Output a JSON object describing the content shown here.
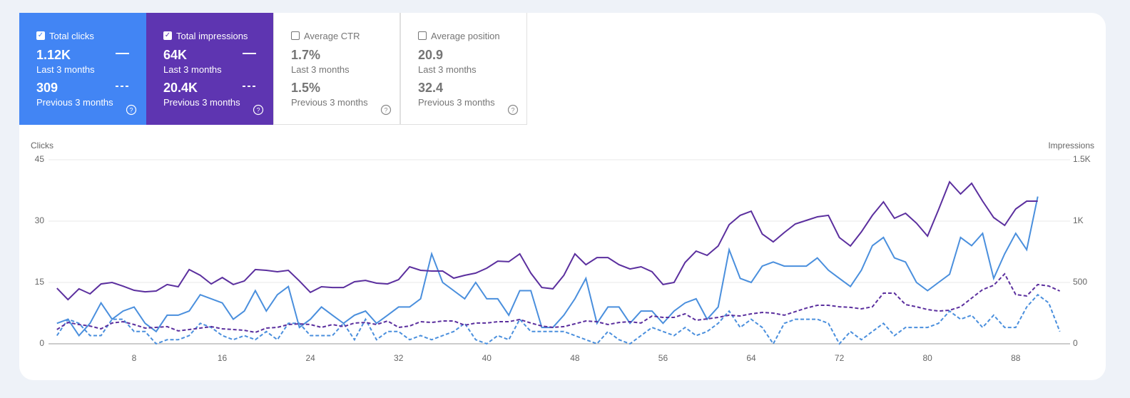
{
  "metrics": [
    {
      "label": "Total clicks",
      "checked": true,
      "color": "#4285f4",
      "current": {
        "value": "1.12K",
        "period": "Last 3 months"
      },
      "previous": {
        "value": "309",
        "period": "Previous 3 months"
      }
    },
    {
      "label": "Total impressions",
      "checked": true,
      "color": "#5e35b1",
      "current": {
        "value": "64K",
        "period": "Last 3 months"
      },
      "previous": {
        "value": "20.4K",
        "period": "Previous 3 months"
      }
    },
    {
      "label": "Average CTR",
      "checked": false,
      "current": {
        "value": "1.7%",
        "period": "Last 3 months"
      },
      "previous": {
        "value": "1.5%",
        "period": "Previous 3 months"
      }
    },
    {
      "label": "Average position",
      "checked": false,
      "current": {
        "value": "20.9",
        "period": "Last 3 months"
      },
      "previous": {
        "value": "32.4",
        "period": "Previous 3 months"
      }
    }
  ],
  "chart_data": {
    "type": "line",
    "y_label": "Clicks",
    "y2_label": "Impressions",
    "x": [
      1,
      2,
      3,
      4,
      5,
      6,
      7,
      8,
      9,
      10,
      11,
      12,
      13,
      14,
      15,
      16,
      17,
      18,
      19,
      20,
      21,
      22,
      23,
      24,
      25,
      26,
      27,
      28,
      29,
      30,
      31,
      32,
      33,
      34,
      35,
      36,
      37,
      38,
      39,
      40,
      41,
      42,
      43,
      44,
      45,
      46,
      47,
      48,
      49,
      50,
      51,
      52,
      53,
      54,
      55,
      56,
      57,
      58,
      59,
      60,
      61,
      62,
      63,
      64,
      65,
      66,
      67,
      68,
      69,
      70,
      71,
      72,
      73,
      74,
      75,
      76,
      77,
      78,
      79,
      80,
      81,
      82,
      83,
      84,
      85,
      86,
      87,
      88,
      89,
      90,
      91,
      92
    ],
    "xlim": [
      0,
      93
    ],
    "xticks": [
      8,
      16,
      24,
      32,
      40,
      48,
      56,
      64,
      72,
      80,
      88
    ],
    "ylim": [
      0,
      45
    ],
    "yticks": [
      0,
      15,
      30,
      45
    ],
    "y2lim": [
      0,
      1500
    ],
    "y2ticks": [
      0,
      500,
      {
        "value": 1000,
        "label": "1K"
      },
      {
        "value": 1500,
        "label": "1.5K"
      }
    ],
    "grid": true,
    "series": [
      {
        "color": "#4a8fdd",
        "dashed": false,
        "values": [
          5,
          6,
          2,
          5,
          10,
          6,
          8,
          9,
          5,
          3,
          7,
          7,
          8,
          12,
          11,
          10,
          6,
          8,
          13,
          8,
          12,
          14,
          4,
          6,
          9,
          7,
          5,
          7,
          8,
          5,
          7,
          9,
          9,
          11,
          22,
          15,
          13,
          11,
          15,
          11,
          11,
          7,
          13,
          13,
          4,
          4,
          7,
          11,
          16,
          5,
          9,
          9,
          5,
          8,
          8,
          5,
          8,
          10,
          11,
          6,
          9,
          23,
          16,
          15,
          19,
          20,
          19,
          19,
          19,
          21,
          18,
          16,
          14,
          18,
          24,
          26,
          21,
          20,
          15,
          13,
          15,
          17,
          26,
          24,
          27,
          16,
          22,
          27,
          23,
          36,
          null,
          null
        ]
      },
      {
        "color": "#4a8fdd",
        "dashed": true,
        "values": [
          2,
          6,
          5,
          2,
          2,
          6,
          6,
          3,
          3,
          0,
          1,
          1,
          2,
          5,
          4,
          2,
          1,
          2,
          1,
          3,
          1,
          5,
          5,
          2,
          2,
          2,
          5,
          1,
          6,
          1,
          3,
          3,
          1,
          2,
          1,
          2,
          3,
          5,
          1,
          0,
          2,
          1,
          6,
          3,
          3,
          3,
          3,
          2,
          1,
          0,
          3,
          1,
          0,
          2,
          4,
          3,
          2,
          4,
          2,
          3,
          5,
          8,
          4,
          6,
          4,
          0,
          5,
          6,
          6,
          6,
          5,
          0,
          3,
          1,
          3,
          5,
          2,
          4,
          4,
          4,
          5,
          8,
          6,
          7,
          4,
          7,
          4,
          4,
          9,
          12,
          10,
          3
        ]
      },
      {
        "color": "#5b2f9e",
        "dashed": false,
        "axis": "y2",
        "values": [
          453,
          360,
          448,
          407,
          488,
          500,
          470,
          436,
          424,
          430,
          483,
          465,
          605,
          558,
          488,
          540,
          483,
          512,
          605,
          599,
          587,
          599,
          512,
          419,
          465,
          459,
          459,
          506,
          517,
          494,
          488,
          523,
          628,
          599,
          593,
          593,
          535,
          558,
          576,
          616,
          674,
          669,
          733,
          576,
          459,
          448,
          558,
          733,
          645,
          703,
          703,
          645,
          610,
          628,
          587,
          483,
          500,
          663,
          756,
          721,
          797,
          971,
          1047,
          1081,
          895,
          831,
          907,
          977,
          1006,
          1035,
          1047,
          866,
          797,
          913,
          1047,
          1157,
          1023,
          1064,
          983,
          878,
          1093,
          1320,
          1221,
          1308,
          1163,
          1029,
          965,
          1099,
          1163,
          1163,
          null,
          null
        ]
      },
      {
        "color": "#5b2f9e",
        "dashed": true,
        "axis": "y2",
        "values": [
          116,
          174,
          157,
          145,
          122,
          169,
          180,
          157,
          128,
          134,
          140,
          105,
          116,
          128,
          140,
          122,
          116,
          110,
          93,
          128,
          134,
          157,
          163,
          157,
          134,
          157,
          140,
          169,
          174,
          157,
          186,
          134,
          145,
          180,
          174,
          186,
          186,
          151,
          169,
          169,
          180,
          180,
          198,
          169,
          145,
          134,
          140,
          163,
          186,
          180,
          157,
          174,
          180,
          169,
          227,
          215,
          215,
          244,
          192,
          203,
          215,
          233,
          227,
          244,
          256,
          250,
          233,
          262,
          291,
          314,
          314,
          302,
          297,
          285,
          302,
          413,
          413,
          320,
          302,
          279,
          267,
          273,
          302,
          372,
          442,
          477,
          570,
          401,
          390,
          483,
          471,
          430
        ]
      }
    ]
  }
}
